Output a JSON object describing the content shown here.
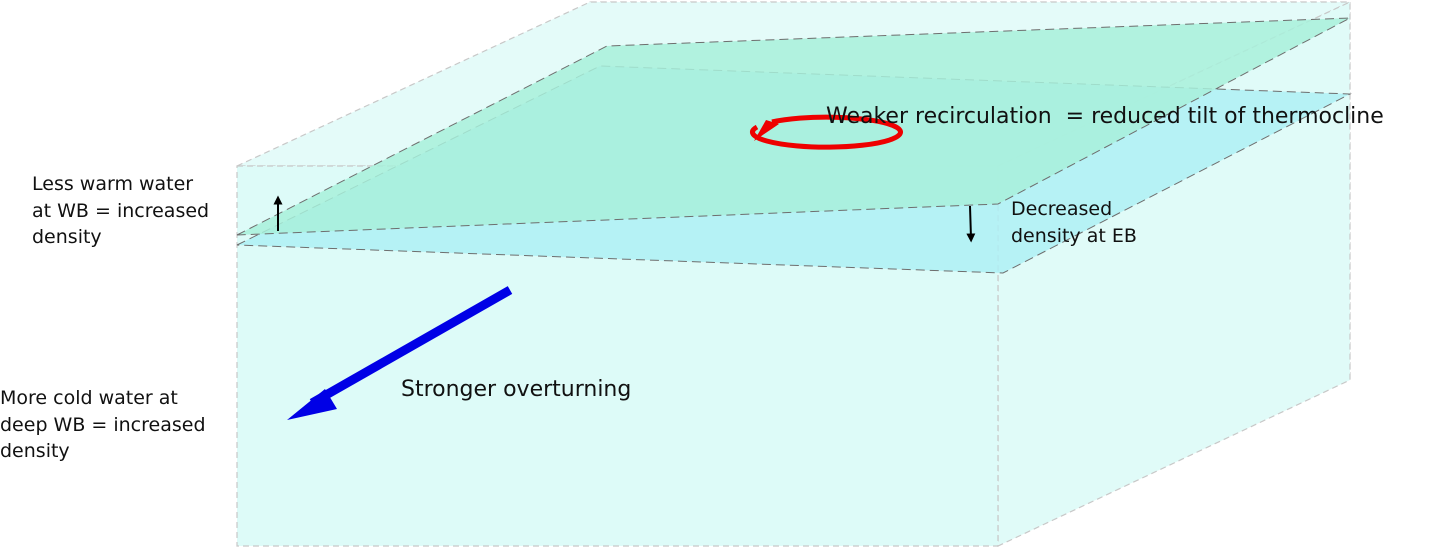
{
  "labels": {
    "wb_warm": "Less warm water\nat WB = increased\ndensity",
    "eb_density": "Decreased\ndensity at EB",
    "wb_cold": "More cold water at\ndeep WB = increased\ndensity",
    "recirculation": "Weaker recirculation  = reduced tilt of thermocline",
    "overturning": "Stronger overturning"
  },
  "colors": {
    "box_fill": "#ddfbf8",
    "thermocline_original": "#aef0f5",
    "thermocline_tilted": "#a8f0da",
    "recirculation_arrow": "#ee0000",
    "overturning_arrow": "#0000e6",
    "density_arrows": "#000000",
    "edges": "#bbbbbb"
  },
  "icons": {
    "recirculation": "circular-arrow-icon",
    "overturning": "downward-arrow-icon",
    "wb_density": "up-arrow-icon",
    "eb_density": "down-arrow-icon"
  }
}
